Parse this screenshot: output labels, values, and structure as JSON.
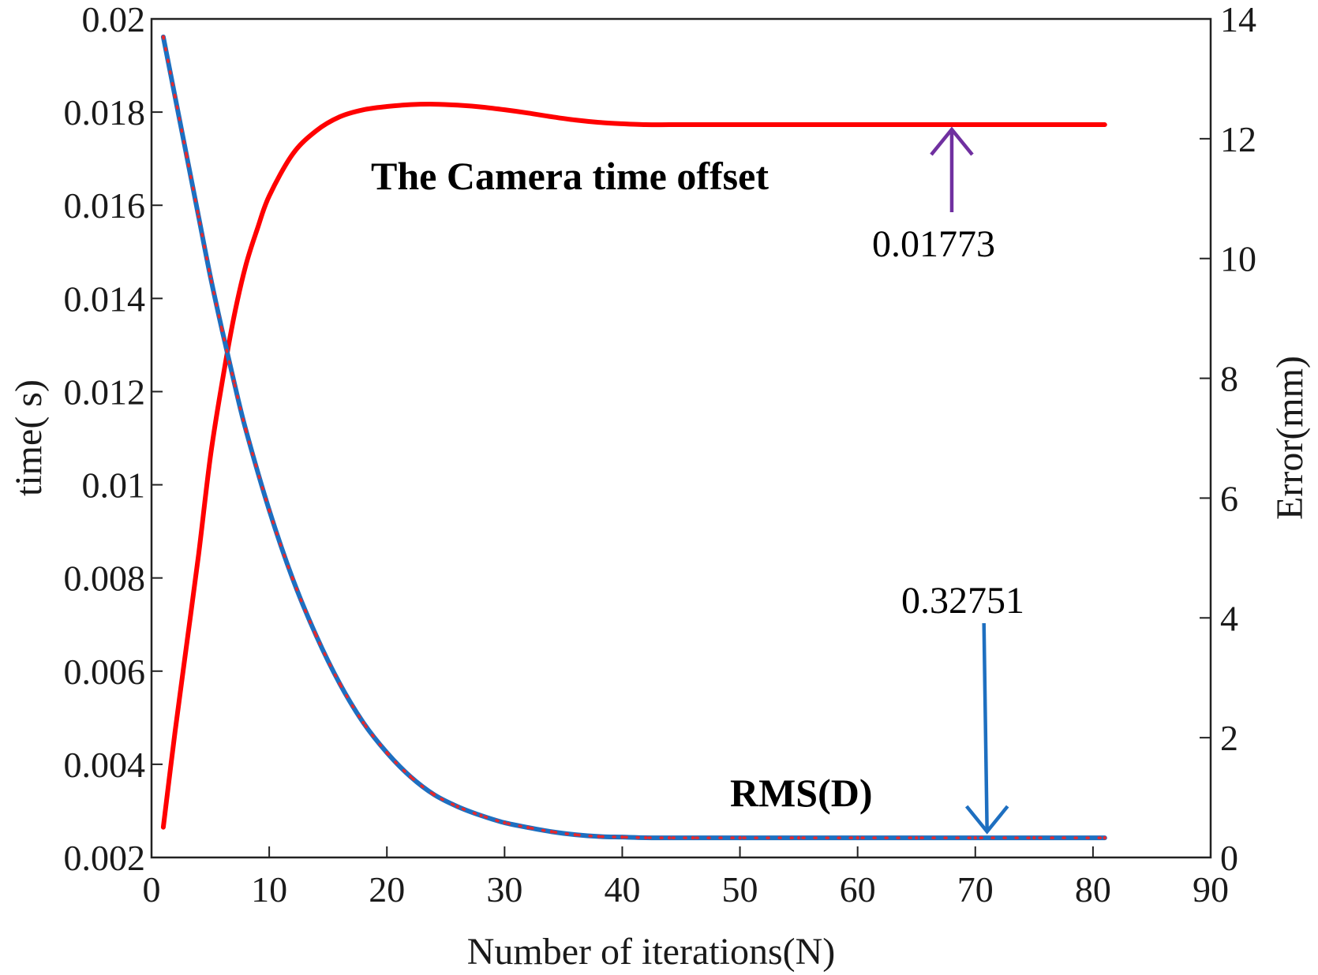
{
  "chart_data": {
    "type": "line",
    "title": "",
    "xlabel": "Number of iterations(N)",
    "ylabel_left": "time( s)",
    "ylabel_right": "Error(mm)",
    "xlim": [
      0,
      90
    ],
    "ylim_left": [
      0.002,
      0.02
    ],
    "ylim_right": [
      0,
      14
    ],
    "x_ticks": [
      0,
      10,
      20,
      30,
      40,
      50,
      60,
      70,
      80,
      90
    ],
    "x_tick_labels": [
      "0",
      "10",
      "20",
      "30",
      "40",
      "50",
      "60",
      "70",
      "80",
      "90"
    ],
    "y_left_ticks": [
      0.002,
      0.004,
      0.006,
      0.008,
      0.01,
      0.012,
      0.014,
      0.016,
      0.018,
      0.02
    ],
    "y_left_tick_labels": [
      "0.002",
      "0.004",
      "0.006",
      "0.008",
      "0.01",
      "0.012",
      "0.014",
      "0.016",
      "0.018",
      "0.02"
    ],
    "y_right_ticks": [
      0,
      2,
      4,
      6,
      8,
      10,
      12,
      14
    ],
    "y_right_tick_labels": [
      "0",
      "2",
      "4",
      "6",
      "8",
      "10",
      "12",
      "14"
    ],
    "grid": false,
    "series": [
      {
        "axis": "left",
        "color": "#ff0000",
        "style": "solid",
        "x": [
          1,
          2,
          3,
          4,
          5,
          6,
          7,
          8,
          9,
          10,
          12,
          14,
          16,
          18,
          20,
          22,
          24,
          26,
          28,
          30,
          32,
          34,
          36,
          38,
          40,
          42,
          44,
          46,
          50,
          55,
          60,
          65,
          70,
          75,
          81
        ],
        "values": [
          0.00265,
          0.0047,
          0.0066,
          0.0085,
          0.0106,
          0.0122,
          0.0136,
          0.0147,
          0.0155,
          0.0162,
          0.0171,
          0.0176,
          0.0179,
          0.01805,
          0.01812,
          0.01816,
          0.01817,
          0.01815,
          0.01811,
          0.01805,
          0.01798,
          0.0179,
          0.01783,
          0.01778,
          0.01775,
          0.01773,
          0.01773,
          0.01773,
          0.01773,
          0.01773,
          0.01773,
          0.01773,
          0.01773,
          0.01773,
          0.01773
        ]
      },
      {
        "axis": "right",
        "color": "#1e6fc0",
        "style": "solid",
        "marker_color": "#e8282b",
        "x": [
          1,
          2,
          3,
          4,
          5,
          6,
          7,
          8,
          10,
          12,
          14,
          16,
          18,
          20,
          22,
          24,
          26,
          28,
          30,
          32,
          34,
          36,
          38,
          40,
          42,
          44,
          46,
          50,
          55,
          60,
          65,
          70,
          75,
          81
        ],
        "values": [
          13.7,
          12.7,
          11.7,
          10.7,
          9.7,
          8.8,
          7.95,
          7.15,
          5.8,
          4.65,
          3.7,
          2.9,
          2.25,
          1.75,
          1.35,
          1.05,
          0.85,
          0.7,
          0.58,
          0.5,
          0.43,
          0.38,
          0.35,
          0.34,
          0.33,
          0.3275,
          0.3275,
          0.3275,
          0.3275,
          0.3275,
          0.3275,
          0.3275,
          0.3275,
          0.3275
        ]
      }
    ],
    "annotations": [
      {
        "id": "camera-offset-label",
        "text": "The Camera time offset",
        "bold": true
      },
      {
        "id": "camera-offset-value",
        "text": "0.01773",
        "bold": false,
        "arrow_color": "#7030a0",
        "arrow_x": 68,
        "arrow_axis": "left",
        "arrow_tip": 0.01773
      },
      {
        "id": "rms-label",
        "text": "RMS(D)",
        "bold": true
      },
      {
        "id": "rms-value",
        "text": "0.32751",
        "bold": false,
        "arrow_color": "#1e6fc0",
        "arrow_x": 71,
        "arrow_axis": "right",
        "arrow_tip": 0.3275
      }
    ]
  }
}
